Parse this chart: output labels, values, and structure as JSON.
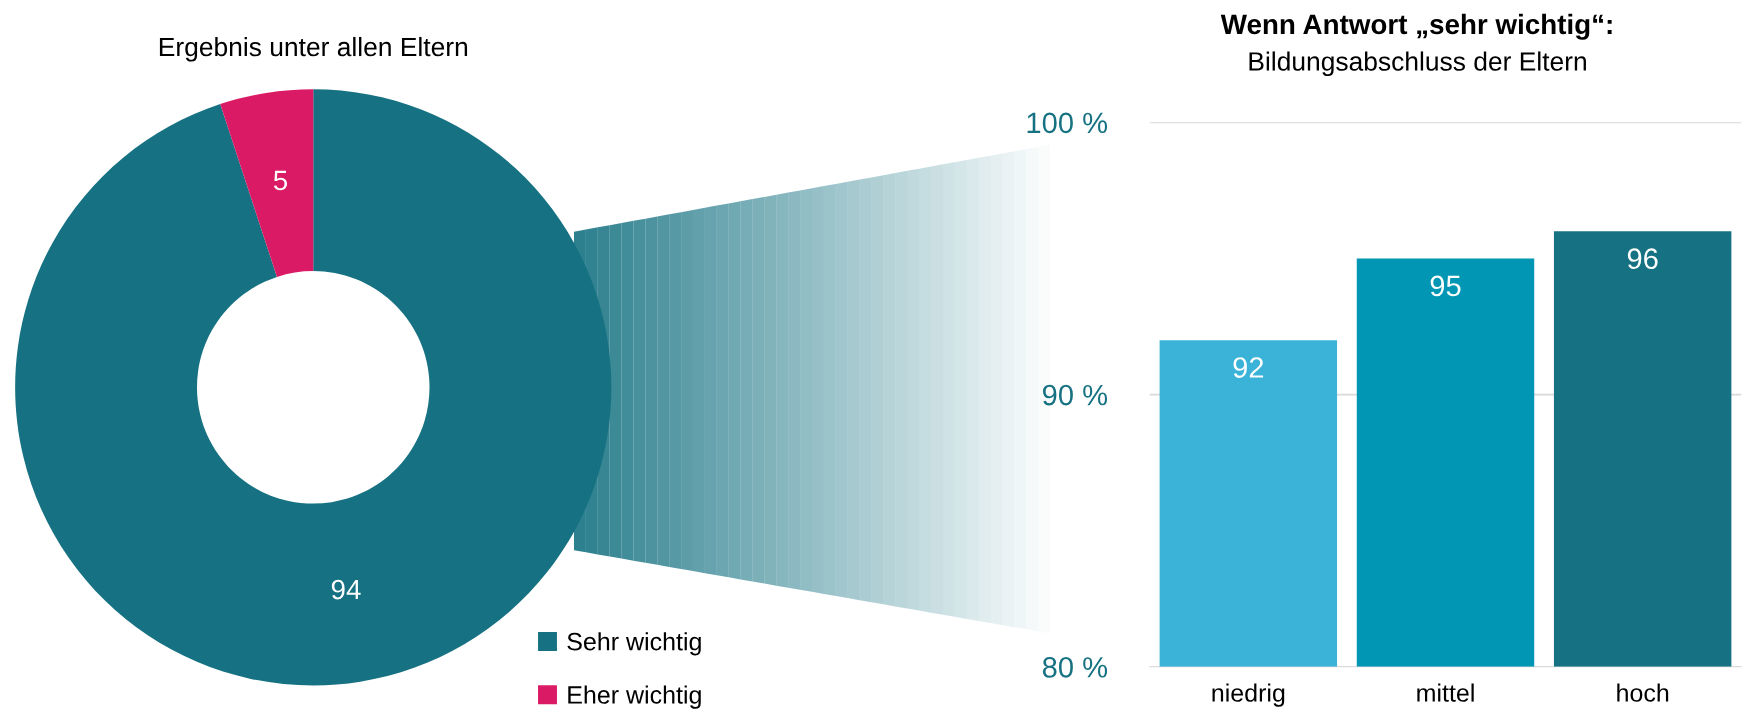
{
  "chart_data": [
    {
      "type": "donut",
      "title": "Ergebnis unter allen Eltern",
      "categories": [
        "Sehr wichtig",
        "Eher wichtig"
      ],
      "values": [
        94,
        5
      ],
      "colors": [
        "#167282",
        "#db1a66"
      ],
      "data_labels": true,
      "legend": "bottom right"
    },
    {
      "type": "bar",
      "title": "Wenn Antwort „sehr wichtig“:",
      "subtitle": "Bildungsabschluss der Eltern",
      "categories": [
        "niedrig",
        "mittel",
        "hoch"
      ],
      "values": [
        92,
        95,
        96
      ],
      "colors": [
        "#3bb3d9",
        "#0096b4",
        "#167282"
      ],
      "ylim": [
        80,
        100
      ],
      "yticks": [
        {
          "value": 80,
          "label": "80 %"
        },
        {
          "value": 90,
          "label": "90 %"
        },
        {
          "value": 100,
          "label": "100 %"
        }
      ],
      "grid": "y",
      "data_labels": true
    }
  ]
}
